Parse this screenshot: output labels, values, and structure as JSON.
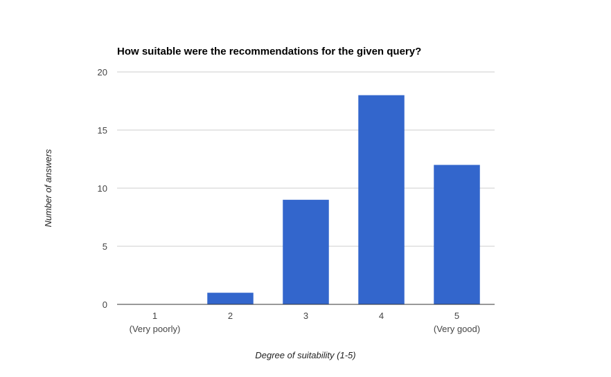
{
  "chart_data": {
    "type": "bar",
    "title": "How suitable were the recommendations for the given query?",
    "xlabel": "Degree of suitability (1-5)",
    "ylabel": "Number of answers",
    "categories": [
      "1",
      "2",
      "3",
      "4",
      "5"
    ],
    "category_sublabels": [
      "(Very poorly)",
      "",
      "",
      "",
      "(Very good)"
    ],
    "values": [
      0,
      1,
      9,
      18,
      12
    ],
    "ylim": [
      0,
      20
    ],
    "yticks": [
      "0",
      "5",
      "10",
      "15",
      "20"
    ],
    "grid": true,
    "legend": "none",
    "bar_color": "#3366cc"
  }
}
